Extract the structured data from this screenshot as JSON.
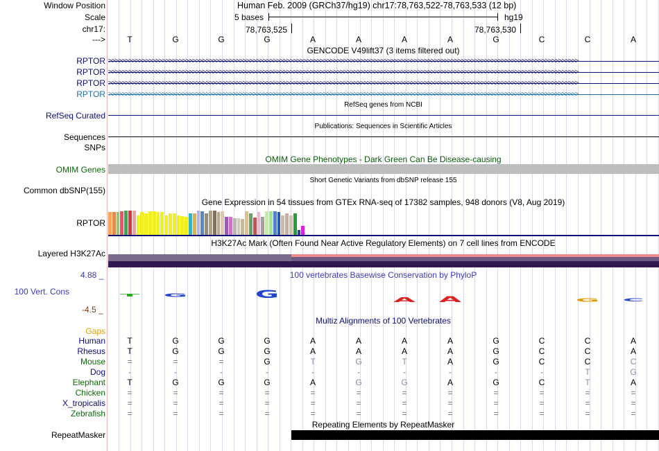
{
  "header": {
    "window_position_label": "Window Position",
    "window_position_value": "Human Feb. 2009 (GRCh37/hg19)   chr17:78,763,522-78,763,533 (12 bp)",
    "scale_label": "Scale",
    "scale_left": "5 bases",
    "scale_right": "hg19",
    "chrom_label": "chr17:",
    "coord_1": "78,763,525",
    "coord_2": "78,763,530",
    "strand_label": "--->",
    "sequence": [
      "T",
      "G",
      "G",
      "G",
      "A",
      "A",
      "A",
      "A",
      "G",
      "C",
      "C",
      "A"
    ]
  },
  "gencode": {
    "title": "GENCODE V49lift37 (3 items filtered out)",
    "tracks": [
      "RPTOR",
      "RPTOR",
      "RPTOR",
      "RPTOR"
    ],
    "colors": [
      "#0c0c78",
      "#0c0c78",
      "#0c0c78",
      "#1a6fa8"
    ]
  },
  "refseq": {
    "title": "RefSeq genes from NCBI",
    "label": "RefSeq Curated"
  },
  "publications": {
    "title": "Publications: Sequences in Scientific Articles",
    "label": "Sequences"
  },
  "snps": {
    "label": "SNPs"
  },
  "omim": {
    "title": "OMIM Gene Phenotypes - Dark Green Can Be Disease-causing",
    "label": "OMIM Genes",
    "color": "#0a5a0a"
  },
  "dbsnp": {
    "title": "Short Genetic Variants from dbSNP release 155",
    "label": "Common dbSNP(155)"
  },
  "gtex": {
    "title": "Gene Expression in 54 tissues from GTEx RNA-seq of 17382 samples, 948 donors (V8, Aug 2019)",
    "label": "RPTOR",
    "bars": [
      {
        "c": "#f7a35c",
        "v": 0.94
      },
      {
        "c": "#e8884a",
        "v": 0.94
      },
      {
        "c": "#9bc17c",
        "v": 0.94
      },
      {
        "c": "#e8555a",
        "v": 0.97
      },
      {
        "c": "#46a24b",
        "v": 1.0
      },
      {
        "c": "#d43b3b",
        "v": 1.0
      },
      {
        "c": "#f0a0a0",
        "v": 1.0
      },
      {
        "c": "#f2ef1f",
        "v": 0.81
      },
      {
        "c": "#f2ef1f",
        "v": 0.94
      },
      {
        "c": "#f2ef1f",
        "v": 0.88
      },
      {
        "c": "#f2ef1f",
        "v": 0.97
      },
      {
        "c": "#f2ef1f",
        "v": 0.97
      },
      {
        "c": "#f2ef1f",
        "v": 0.94
      },
      {
        "c": "#f2ef1f",
        "v": 0.94
      },
      {
        "c": "#f2ef1f",
        "v": 0.81
      },
      {
        "c": "#f2ef1f",
        "v": 0.88
      },
      {
        "c": "#f2ef1f",
        "v": 0.88
      },
      {
        "c": "#f2ef1f",
        "v": 0.81
      },
      {
        "c": "#f2ef1f",
        "v": 0.78
      },
      {
        "c": "#f2ef1f",
        "v": 0.75
      },
      {
        "c": "#35b4c8",
        "v": 0.88
      },
      {
        "c": "#d8b060",
        "v": 0.88
      },
      {
        "c": "#b1b2e8",
        "v": 1.0
      },
      {
        "c": "#5b87c8",
        "v": 0.97
      },
      {
        "c": "#9a8e7a",
        "v": 0.88
      },
      {
        "c": "#b0a080",
        "v": 1.0
      },
      {
        "c": "#8b7050",
        "v": 1.0
      },
      {
        "c": "#b8a890",
        "v": 0.94
      },
      {
        "c": "#d8cab0",
        "v": 0.97
      },
      {
        "c": "#9b59b6",
        "v": 0.75
      },
      {
        "c": "#d070c8",
        "v": 0.75
      },
      {
        "c": "#b8b8b0",
        "v": 0.69
      },
      {
        "c": "#d0c8b8",
        "v": 0.69
      },
      {
        "c": "#c8b898",
        "v": 0.66
      },
      {
        "c": "#e0c088",
        "v": 0.97
      },
      {
        "c": "#68a068",
        "v": 0.88
      },
      {
        "c": "#c85050",
        "v": 0.72
      },
      {
        "c": "#f0b8c8",
        "v": 0.94
      },
      {
        "c": "#a0a0a0",
        "v": 0.75
      },
      {
        "c": "#c8e8b0",
        "v": 0.97
      },
      {
        "c": "#a8e0a0",
        "v": 0.97
      },
      {
        "c": "#5880c8",
        "v": 0.97
      },
      {
        "c": "#2858b0",
        "v": 0.94
      },
      {
        "c": "#d0b8a8",
        "v": 0.81
      },
      {
        "c": "#c8b0a0",
        "v": 0.88
      },
      {
        "c": "#d8c0a8",
        "v": 0.81
      },
      {
        "c": "#2a9a3a",
        "v": 0.88
      },
      {
        "c": "#1a4a9a",
        "v": 0.19
      },
      {
        "c": "#e020e0",
        "v": 0.38
      }
    ]
  },
  "h3k27ac": {
    "title": "H3K27Ac Mark (Often Found Near Active Regulatory Elements) on 7 cell lines from ENCODE",
    "label": "Layered H3K27Ac"
  },
  "conservation": {
    "title": "100 vertebrates Basewise Conservation by PhyloP",
    "label": "100 Vert. Cons",
    "ymax": "4.88 _",
    "ymin": "-4.5 _",
    "logos": [
      "T",
      "G",
      "",
      "G",
      "",
      "",
      "A",
      "A",
      "",
      "",
      "G",
      "C"
    ]
  },
  "multiz": {
    "title": "Multiz Alignments of 100 Vertebrates",
    "gaps_label": "Gaps",
    "species": [
      {
        "name": "Human",
        "color": "#0c0c78",
        "seq": [
          "T",
          "G",
          "G",
          "G",
          "A",
          "A",
          "A",
          "A",
          "G",
          "C",
          "C",
          "A"
        ],
        "dim": []
      },
      {
        "name": "Rhesus",
        "color": "#0c0c78",
        "seq": [
          "T",
          "G",
          "G",
          "G",
          "A",
          "A",
          "A",
          "A",
          "G",
          "C",
          "C",
          "A"
        ],
        "dim": []
      },
      {
        "name": "Mouse",
        "color": "#0a6a0a",
        "seq": [
          "=",
          "=",
          "=",
          "G",
          "T",
          "G",
          "T",
          "A",
          "G",
          "C",
          "C",
          "C"
        ],
        "dim": [
          4,
          5,
          6,
          11
        ]
      },
      {
        "name": "Dog",
        "color": "#0c0c78",
        "seq": [
          "-",
          "-",
          "-",
          "-",
          "-",
          "-",
          "-",
          "-",
          "-",
          "-",
          "T",
          "G"
        ],
        "dim": [
          10,
          11
        ]
      },
      {
        "name": "Elephant",
        "color": "#0a6a0a",
        "seq": [
          "T",
          "G",
          "G",
          "G",
          "A",
          "G",
          "G",
          "A",
          "G",
          "C",
          "T",
          "A"
        ],
        "dim": [
          5,
          6,
          10
        ]
      },
      {
        "name": "Chicken",
        "color": "#0a6a0a",
        "seq": [
          "=",
          "=",
          "=",
          "=",
          "=",
          "=",
          "=",
          "=",
          "=",
          "=",
          "=",
          "="
        ],
        "dim": []
      },
      {
        "name": "X_tropicalis",
        "color": "#0c0c78",
        "seq": [
          "=",
          "=",
          "=",
          "=",
          "=",
          "=",
          "=",
          "=",
          "=",
          "=",
          "=",
          "="
        ],
        "dim": []
      },
      {
        "name": "Zebrafish",
        "color": "#0a6a0a",
        "seq": [
          "=",
          "=",
          "=",
          "=",
          "=",
          "=",
          "=",
          "=",
          "=",
          "=",
          "=",
          "="
        ],
        "dim": []
      }
    ]
  },
  "repeatmasker": {
    "title": "Repeating Elements by RepeatMasker",
    "label": "RepeatMasker"
  }
}
